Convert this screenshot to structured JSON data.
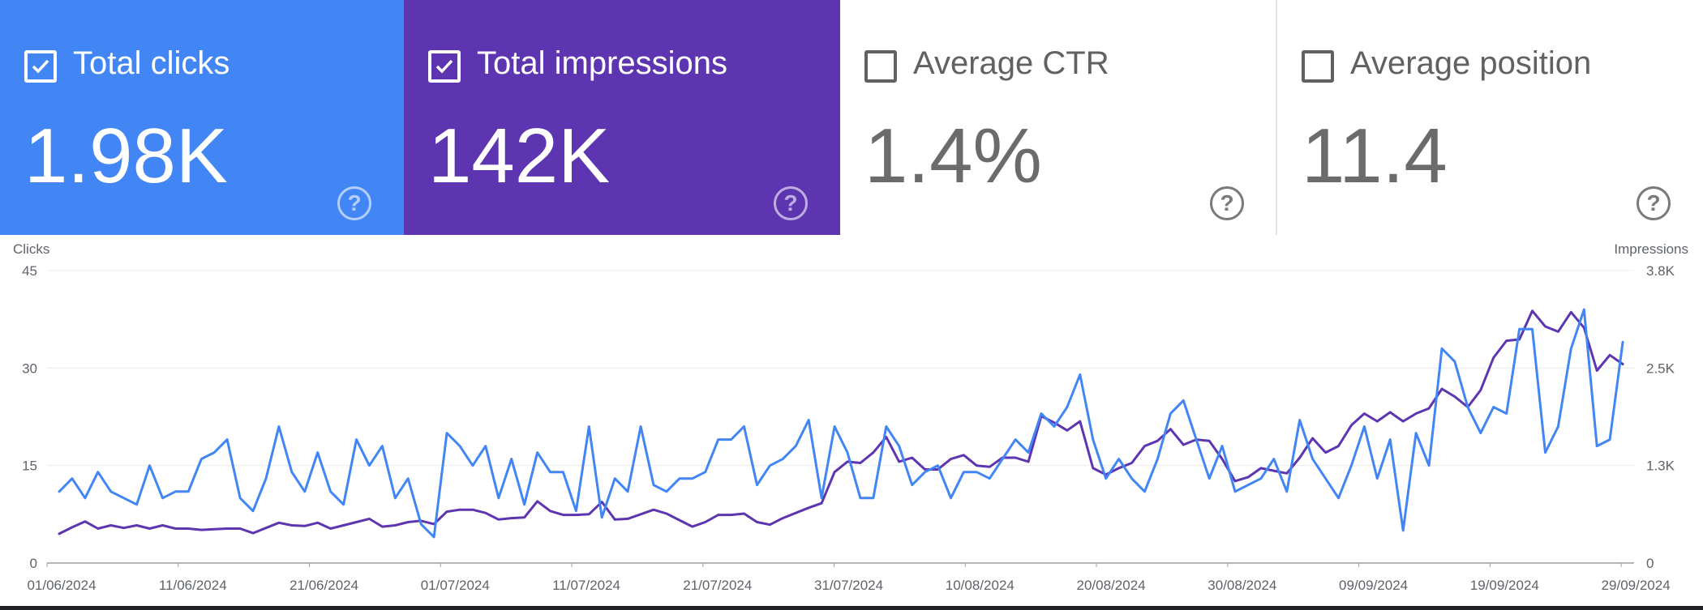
{
  "cards": [
    {
      "label": "Total clicks",
      "value": "1.98K",
      "checked": true,
      "color": "#4285f4"
    },
    {
      "label": "Total impressions",
      "value": "142K",
      "checked": true,
      "color": "#5e35b1"
    },
    {
      "label": "Average CTR",
      "value": "1.4%",
      "checked": false,
      "color": "#ffffff"
    },
    {
      "label": "Average position",
      "value": "11.4",
      "checked": false,
      "color": "#ffffff"
    }
  ],
  "icons": {
    "checkbox": "checkbox-icon",
    "help": "help-circle-icon"
  },
  "help_glyph": "?",
  "chart_data": {
    "type": "line",
    "left_axis": {
      "title": "Clicks",
      "ticks": [
        "0",
        "15",
        "30",
        "45"
      ],
      "tick_values": [
        0,
        15,
        30,
        45
      ],
      "ylim": [
        0,
        45
      ]
    },
    "right_axis": {
      "title": "Impressions",
      "ticks": [
        "0",
        "1.3K",
        "2.5K",
        "3.8K"
      ],
      "tick_values": [
        0,
        1266.7,
        2533.3,
        3800
      ],
      "ylim": [
        0,
        3800
      ]
    },
    "x_labels": [
      "01/06/2024",
      "11/06/2024",
      "21/06/2024",
      "01/07/2024",
      "11/07/2024",
      "21/07/2024",
      "31/07/2024",
      "10/08/2024",
      "20/08/2024",
      "30/08/2024",
      "09/09/2024",
      "19/09/2024",
      "29/09/2024"
    ],
    "x_label_days": [
      0,
      10,
      20,
      30,
      40,
      50,
      60,
      70,
      80,
      90,
      100,
      110,
      120
    ],
    "start_date": "01/06/2024",
    "series": [
      {
        "name": "Clicks",
        "axis": "left",
        "color": "#4285f4",
        "values": [
          11,
          13,
          10,
          14,
          11,
          10,
          9,
          15,
          10,
          11,
          11,
          16,
          17,
          19,
          10,
          8,
          13,
          21,
          14,
          11,
          17,
          11,
          9,
          19,
          15,
          18,
          10,
          13,
          6,
          4,
          20,
          18,
          15,
          18,
          10,
          16,
          9,
          17,
          14,
          14,
          8,
          21,
          7,
          13,
          11,
          21,
          12,
          11,
          13,
          13,
          14,
          19,
          19,
          21,
          12,
          15,
          16,
          18,
          22,
          10,
          21,
          17,
          10,
          10,
          21,
          18,
          12,
          14,
          15,
          10,
          14,
          14,
          13,
          16,
          19,
          17,
          23,
          21,
          24,
          29,
          19,
          13,
          16,
          13,
          11,
          16,
          23,
          25,
          19,
          13,
          18,
          11,
          12,
          13,
          16,
          11,
          22,
          16,
          13,
          10,
          15,
          21,
          13,
          19,
          5,
          20,
          15,
          33,
          31,
          24,
          20,
          24,
          23,
          36,
          36,
          17,
          21,
          33,
          39,
          18,
          19,
          34
        ]
      },
      {
        "name": "Impressions",
        "axis": "left",
        "color": "#5e35b1",
        "values": [
          4.5,
          5.5,
          6.4,
          5.3,
          5.8,
          5.4,
          5.8,
          5.3,
          5.8,
          5.3,
          5.3,
          5.1,
          5.2,
          5.3,
          5.3,
          4.6,
          5.4,
          6.2,
          5.8,
          5.7,
          6.2,
          5.3,
          5.8,
          6.3,
          6.8,
          5.6,
          5.8,
          6.3,
          6.5,
          6,
          7.9,
          8.2,
          8.2,
          7.7,
          6.7,
          6.9,
          7,
          9.5,
          8,
          7.4,
          7.4,
          7.5,
          9.4,
          6.7,
          6.8,
          7.5,
          8.2,
          7.6,
          6.6,
          5.6,
          6.3,
          7.4,
          7.4,
          7.6,
          6.3,
          5.9,
          6.9,
          7.7,
          8.5,
          9.2,
          14,
          15.6,
          15.4,
          17,
          19.4,
          15.6,
          16.2,
          14.4,
          14.4,
          16,
          16.6,
          15,
          14.8,
          16.2,
          16.2,
          15.6,
          22.6,
          21.6,
          20.4,
          21.8,
          14.6,
          13.6,
          14.6,
          15.4,
          18,
          18.8,
          20.6,
          18.2,
          19,
          18.8,
          16,
          12.6,
          13.2,
          14.6,
          14.2,
          13.8,
          16.2,
          19.2,
          17,
          18,
          21.2,
          23,
          21.8,
          23.2,
          21.8,
          23,
          23.8,
          26.8,
          25.6,
          24,
          26.6,
          31.6,
          34.2,
          34.4,
          38.8,
          36.4,
          35.6,
          38.6,
          36.2,
          29.6,
          32,
          30.6
        ]
      }
    ]
  }
}
